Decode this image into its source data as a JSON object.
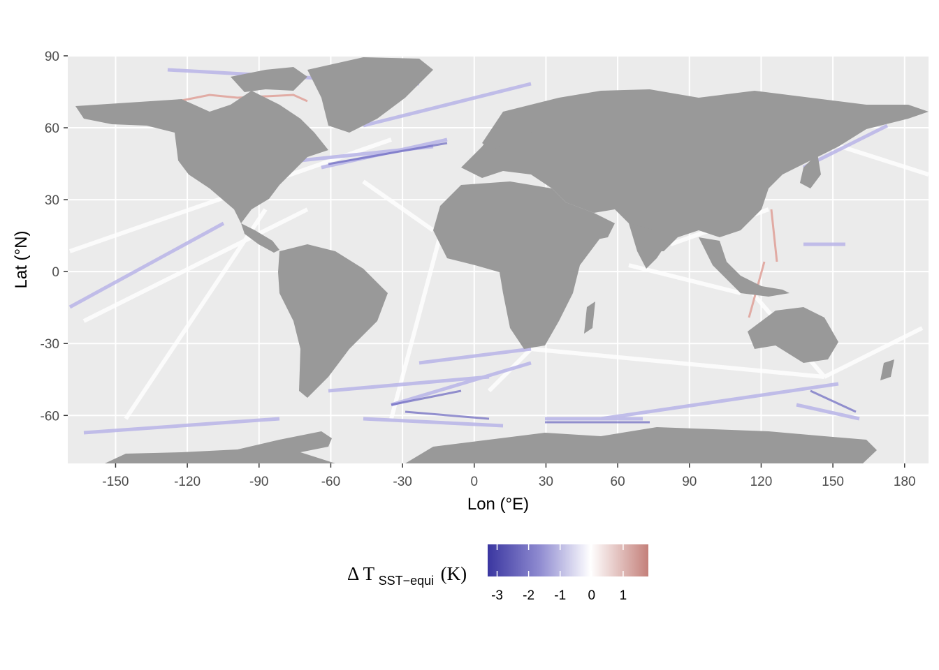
{
  "chart_data": {
    "type": "heatmap",
    "title": "",
    "xlabel": "Lon (°E)",
    "ylabel": "Lat (°N)",
    "xlim": [
      -170,
      190
    ],
    "ylim": [
      -80,
      90
    ],
    "x_ticks": [
      "-150",
      "-120",
      "-90",
      "-60",
      "-30",
      "0",
      "30",
      "60",
      "90",
      "120",
      "150",
      "180"
    ],
    "x_tick_values": [
      -150,
      -120,
      -90,
      -60,
      -30,
      0,
      30,
      60,
      90,
      120,
      150,
      180
    ],
    "y_ticks": [
      "90",
      "60",
      "30",
      "0",
      "-30",
      "-60"
    ],
    "y_tick_values": [
      90,
      60,
      30,
      0,
      -30,
      -60
    ],
    "panel_background": "#ebebeb",
    "land_color": "#999999",
    "grid": true,
    "legend": {
      "position": "bottom",
      "title_main": "Δ T",
      "title_sub": "SST−equi",
      "title_unit": "(K)",
      "breaks": [
        "-3",
        "-2",
        "-1",
        "0",
        "1"
      ],
      "break_values": [
        -3,
        -2,
        -1,
        0,
        1
      ],
      "range": [
        -3.3,
        1.8
      ],
      "colors": {
        "low": "#3a36a0",
        "mid": "#ffffff",
        "high": "#c4807a"
      }
    }
  }
}
